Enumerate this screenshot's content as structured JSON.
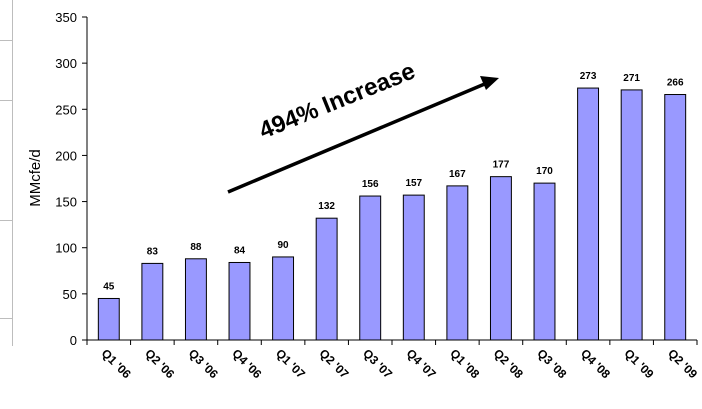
{
  "chart_data": {
    "type": "bar",
    "categories": [
      "Q1 '06",
      "Q2 '06",
      "Q3 '06",
      "Q4 '06",
      "Q1 '07",
      "Q2 '07",
      "Q3 '07",
      "Q4 '07",
      "Q1 '08",
      "Q2 '08",
      "Q3 '08",
      "Q4 '08",
      "Q1 '09",
      "Q2 '09"
    ],
    "values": [
      45,
      83,
      88,
      84,
      90,
      132,
      156,
      157,
      167,
      177,
      170,
      273,
      271,
      266
    ],
    "title": "",
    "xlabel": "",
    "ylabel": "MMcfe/d",
    "ylim": [
      0,
      350
    ],
    "yticks": [
      0,
      50,
      100,
      150,
      200,
      250,
      300,
      350
    ],
    "grid": false,
    "annotation": "494% Increase",
    "colors": {
      "bar_fill": "#9999ff",
      "bar_stroke": "#000000",
      "text": "#000000"
    }
  }
}
